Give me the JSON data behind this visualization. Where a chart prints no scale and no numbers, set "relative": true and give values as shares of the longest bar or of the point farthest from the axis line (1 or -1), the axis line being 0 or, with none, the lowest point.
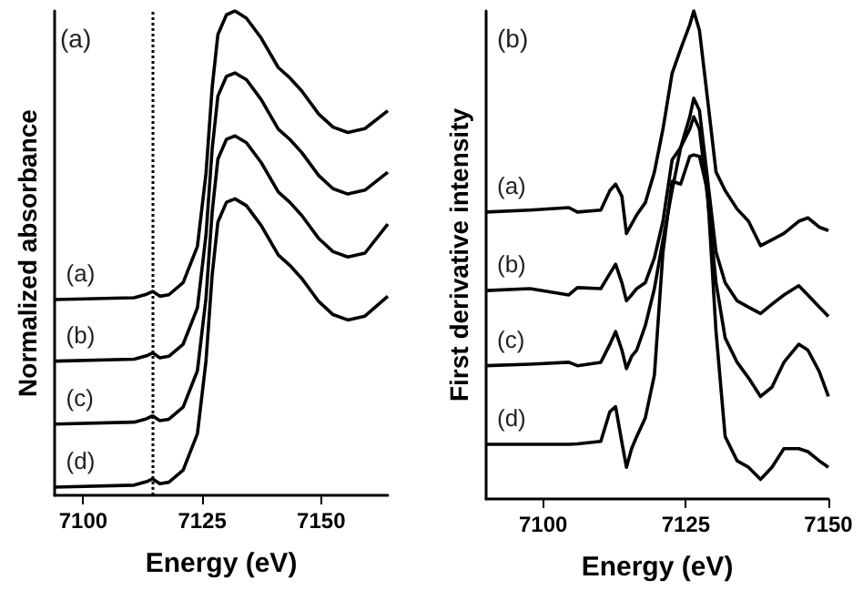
{
  "chart_data": [
    {
      "type": "line",
      "relative": true,
      "xlabel": "Energy (eV)",
      "ylabel": "Normalized absorbance",
      "xlim": [
        7094,
        7164
      ],
      "xticks": [
        7100,
        7125,
        7150
      ],
      "tick_labels": "x",
      "marker": "none",
      "line_style": "solid",
      "annotations": [
        "(a)"
      ],
      "ref_lines": [
        {
          "axis": "x",
          "value": 7114.5,
          "line_style": "dotted",
          "color": "#000000"
        }
      ],
      "x": [
        7094.1,
        7110.7,
        7113.3,
        7114.6,
        7116.1,
        7118.0,
        7121.0,
        7124.0,
        7125.8,
        7127.1,
        7128.3,
        7130.1,
        7131.9,
        7134.3,
        7137.4,
        7141.0,
        7143.4,
        7145.9,
        7149.5,
        7152.5,
        7155.6,
        7159.2,
        7164.0
      ],
      "series": [
        {
          "name": "(a)",
          "color": "#000000",
          "values": [
            0.404,
            0.408,
            0.415,
            0.421,
            0.411,
            0.414,
            0.439,
            0.514,
            0.664,
            0.842,
            0.951,
            0.992,
            1,
            0.985,
            0.944,
            0.883,
            0.862,
            0.835,
            0.787,
            0.76,
            0.749,
            0.757,
            0.794
          ]
        },
        {
          "name": "(b)",
          "color": "#000000",
          "values": [
            0.277,
            0.281,
            0.288,
            0.294,
            0.284,
            0.287,
            0.312,
            0.387,
            0.537,
            0.715,
            0.824,
            0.865,
            0.872,
            0.858,
            0.817,
            0.756,
            0.735,
            0.708,
            0.66,
            0.633,
            0.622,
            0.63,
            0.667
          ]
        },
        {
          "name": "(c)",
          "color": "#000000",
          "values": [
            0.147,
            0.151,
            0.158,
            0.164,
            0.154,
            0.157,
            0.182,
            0.257,
            0.407,
            0.585,
            0.694,
            0.735,
            0.742,
            0.728,
            0.687,
            0.626,
            0.605,
            0.578,
            0.53,
            0.503,
            0.492,
            0.5,
            0.56
          ]
        },
        {
          "name": "(d)",
          "color": "#000000",
          "values": [
            0.017,
            0.021,
            0.028,
            0.034,
            0.024,
            0.027,
            0.052,
            0.127,
            0.277,
            0.455,
            0.564,
            0.605,
            0.612,
            0.598,
            0.557,
            0.496,
            0.475,
            0.448,
            0.4,
            0.373,
            0.362,
            0.37,
            0.411
          ]
        }
      ]
    },
    {
      "type": "line",
      "relative": true,
      "xlabel": "Energy (eV)",
      "ylabel": "First derivative intensity",
      "xlim": [
        7090,
        7150
      ],
      "xticks": [
        7100,
        7125,
        7150
      ],
      "tick_labels": "x",
      "marker": "none",
      "line_style": "solid",
      "annotations": [
        "(b)"
      ],
      "x": [
        7090.0,
        7097.7,
        7104.5,
        7106.0,
        7110.1,
        7111.7,
        7112.7,
        7113.8,
        7114.6,
        7115.5,
        7116.4,
        7117.9,
        7119.5,
        7121.0,
        7122.6,
        7124.1,
        7125.7,
        7126.4,
        7127.4,
        7128.8,
        7130.3,
        7131.9,
        7134.0,
        7136.0,
        7138.1,
        7140.1,
        7142.2,
        7144.8,
        7146.4,
        7148.4,
        7150.0
      ],
      "series": [
        {
          "name": "(a)",
          "color": "#000000",
          "values": [
            0.588,
            0.592,
            0.597,
            0.588,
            0.592,
            0.632,
            0.645,
            0.62,
            0.544,
            0.563,
            0.582,
            0.607,
            0.67,
            0.758,
            0.872,
            0.922,
            0.972,
            1,
            0.96,
            0.821,
            0.67,
            0.632,
            0.594,
            0.569,
            0.519,
            0.531,
            0.544,
            0.569,
            0.576,
            0.557,
            0.55
          ]
        },
        {
          "name": "(b)",
          "color": "#000000",
          "values": [
            0.427,
            0.431,
            0.418,
            0.433,
            0.431,
            0.462,
            0.481,
            0.443,
            0.406,
            0.418,
            0.431,
            0.443,
            0.494,
            0.569,
            0.695,
            0.72,
            0.783,
            0.821,
            0.796,
            0.657,
            0.506,
            0.443,
            0.406,
            0.393,
            0.38,
            0.399,
            0.418,
            0.437,
            0.418,
            0.393,
            0.374
          ]
        },
        {
          "name": "(c)",
          "color": "#000000",
          "values": [
            0.273,
            0.276,
            0.28,
            0.273,
            0.28,
            0.317,
            0.343,
            0.305,
            0.267,
            0.292,
            0.305,
            0.355,
            0.431,
            0.531,
            0.632,
            0.72,
            0.758,
            0.783,
            0.758,
            0.62,
            0.443,
            0.33,
            0.28,
            0.248,
            0.21,
            0.229,
            0.28,
            0.317,
            0.305,
            0.261,
            0.21
          ]
        },
        {
          "name": "(d)",
          "color": "#000000",
          "values": [
            0.112,
            0.112,
            0.112,
            0.113,
            0.118,
            0.179,
            0.189,
            0.116,
            0.065,
            0.103,
            0.128,
            0.166,
            0.254,
            0.506,
            0.651,
            0.645,
            0.702,
            0.705,
            0.702,
            0.632,
            0.343,
            0.128,
            0.078,
            0.065,
            0.04,
            0.065,
            0.103,
            0.103,
            0.097,
            0.078,
            0.065
          ]
        }
      ]
    }
  ]
}
